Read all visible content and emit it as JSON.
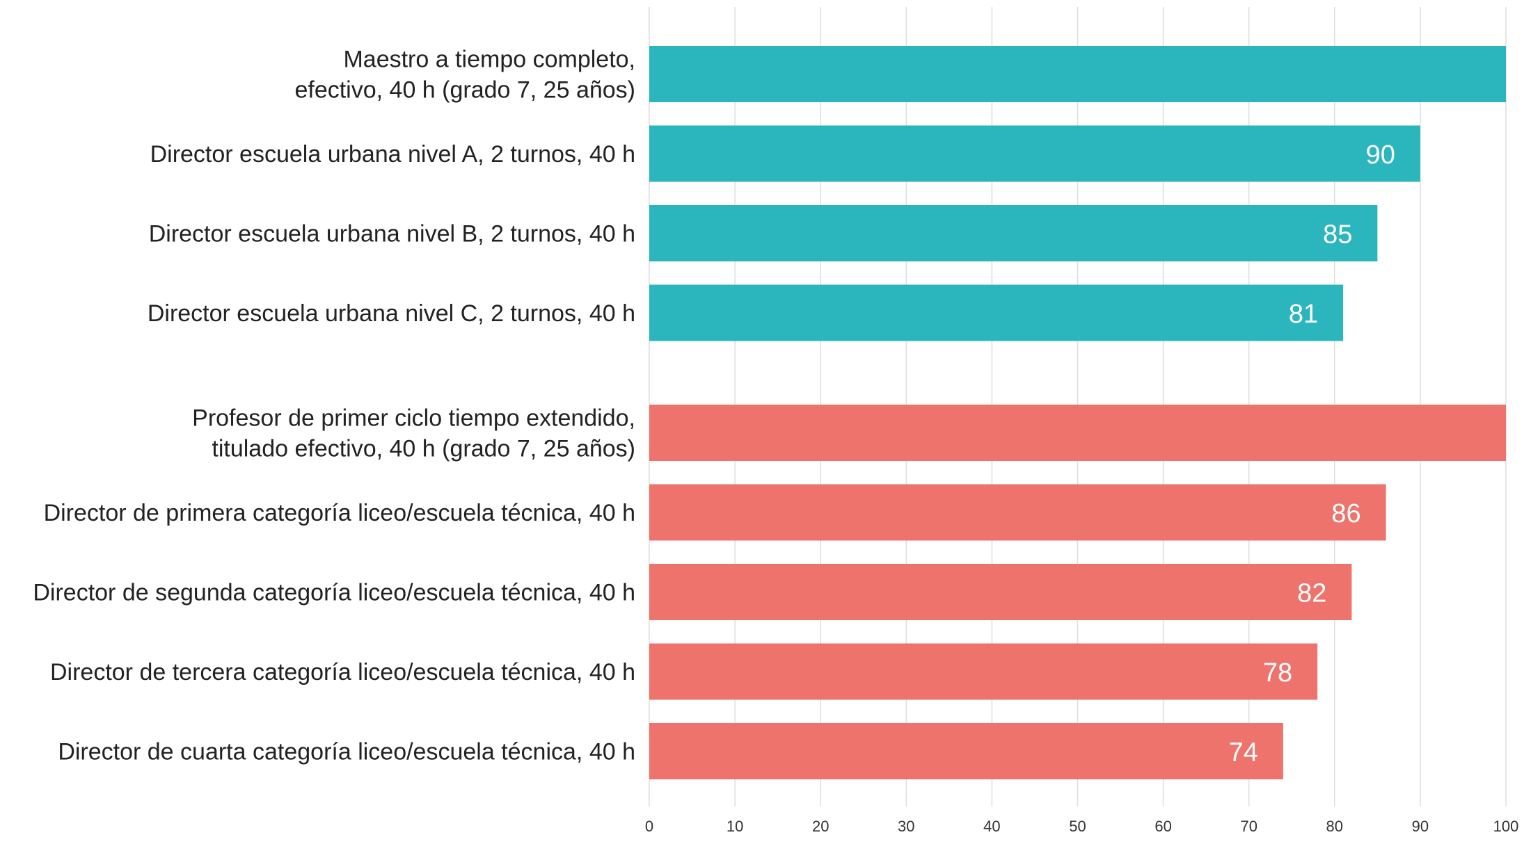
{
  "chart_data": {
    "type": "bar",
    "orientation": "horizontal",
    "xlim": [
      0,
      100
    ],
    "x_ticks": [
      "0",
      "10",
      "20",
      "30",
      "40",
      "50",
      "60",
      "70",
      "80",
      "90",
      "100"
    ],
    "grid": true,
    "groups": [
      {
        "color": "#2bb5bd",
        "bars": [
          {
            "label": [
              "Maestro a tiempo completo,",
              "efectivo, 40 h (grado 7, 25 años)"
            ],
            "value": 100,
            "value_label": ""
          },
          {
            "label": [
              "Director escuela urbana nivel A, 2 turnos, 40 h"
            ],
            "value": 90,
            "value_label": "90"
          },
          {
            "label": [
              "Director escuela urbana nivel B, 2 turnos, 40 h"
            ],
            "value": 85,
            "value_label": "85"
          },
          {
            "label": [
              "Director escuela urbana nivel C, 2 turnos, 40 h"
            ],
            "value": 81,
            "value_label": "81"
          }
        ]
      },
      {
        "color": "#ee736c",
        "bars": [
          {
            "label": [
              "Profesor de primer ciclo tiempo extendido,",
              "titulado efectivo, 40 h (grado 7, 25 años)"
            ],
            "value": 100,
            "value_label": ""
          },
          {
            "label": [
              "Director de primera categoría liceo/escuela técnica, 40 h"
            ],
            "value": 86,
            "value_label": "86"
          },
          {
            "label": [
              "Director de segunda categoría liceo/escuela técnica, 40 h"
            ],
            "value": 82,
            "value_label": "82"
          },
          {
            "label": [
              "Director de tercera categoría liceo/escuela técnica, 40 h"
            ],
            "value": 78,
            "value_label": "78"
          },
          {
            "label": [
              "Director de cuarta categoría liceo/escuela técnica, 40 h"
            ],
            "value": 74,
            "value_label": "74"
          }
        ]
      }
    ]
  }
}
